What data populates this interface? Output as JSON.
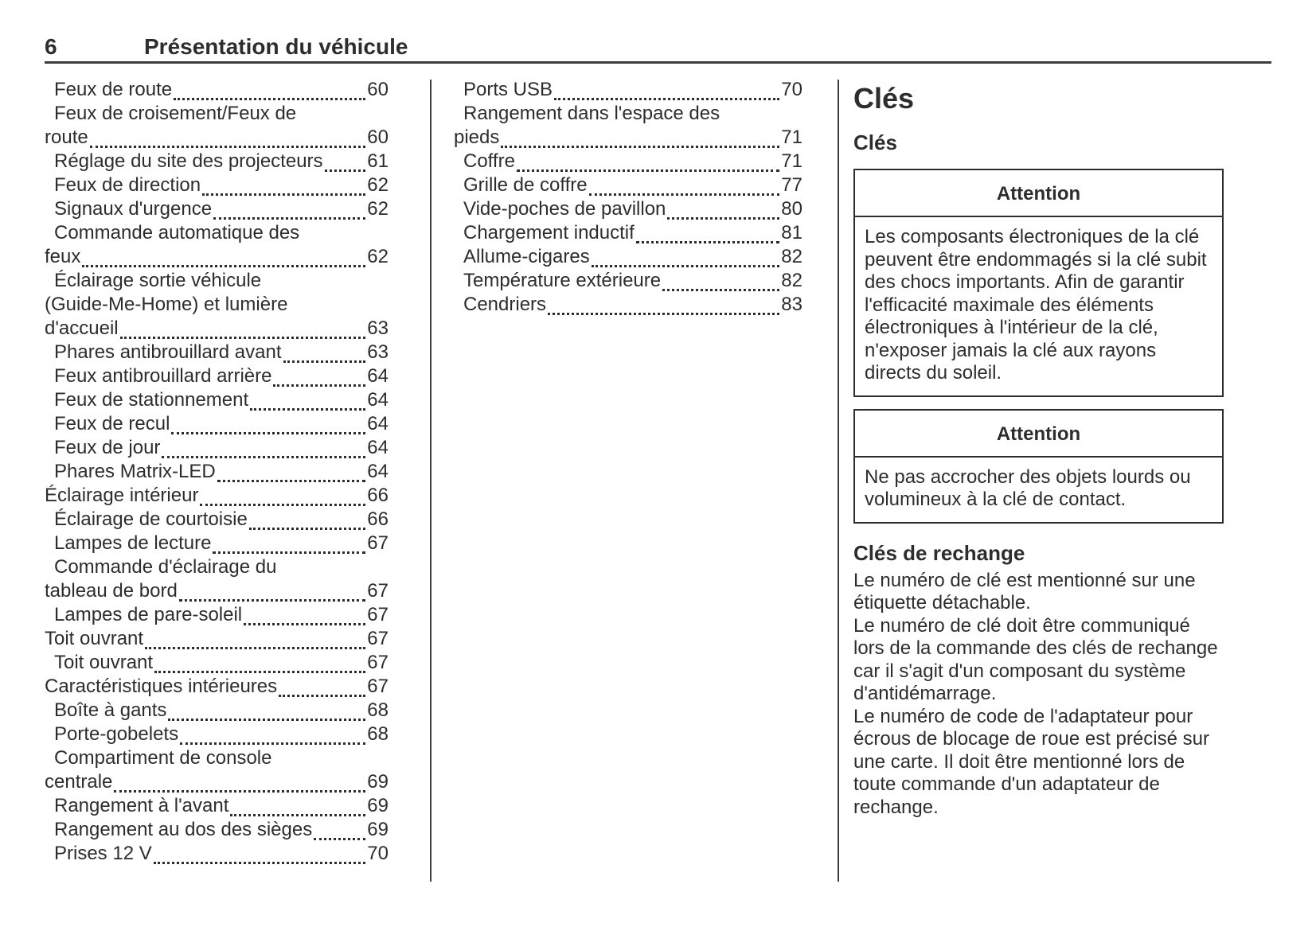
{
  "page": {
    "number": "6",
    "title": "Présentation du véhicule"
  },
  "toc": {
    "column1": [
      {
        "text": "Feux de route",
        "page": "60",
        "indent": 1
      },
      {
        "text": "Feux de croisement/Feux de",
        "indent": 1
      },
      {
        "text": "route",
        "page": "60",
        "indent": 0
      },
      {
        "text": "Réglage du site des projecteurs",
        "page": "61",
        "indent": 1
      },
      {
        "text": "Feux de direction",
        "page": "62",
        "indent": 1
      },
      {
        "text": "Signaux d'urgence",
        "page": "62",
        "indent": 1
      },
      {
        "text": "Commande automatique des",
        "indent": 1
      },
      {
        "text": "feux",
        "page": "62",
        "indent": 0
      },
      {
        "text": "Éclairage sortie véhicule",
        "indent": 1
      },
      {
        "text": "(Guide-Me-Home) et lumière",
        "indent": 0
      },
      {
        "text": "d'accueil",
        "page": "63",
        "indent": 0
      },
      {
        "text": "Phares antibrouillard avant",
        "page": "63",
        "indent": 1
      },
      {
        "text": "Feux antibrouillard arrière",
        "page": "64",
        "indent": 1
      },
      {
        "text": "Feux de stationnement",
        "page": "64",
        "indent": 1
      },
      {
        "text": "Feux de recul",
        "page": "64",
        "indent": 1
      },
      {
        "text": "Feux de jour",
        "page": "64",
        "indent": 1
      },
      {
        "text": "Phares Matrix-LED",
        "page": "64",
        "indent": 1
      },
      {
        "text": "Éclairage intérieur",
        "page": "66",
        "indent": 0
      },
      {
        "text": "Éclairage de courtoisie",
        "page": "66",
        "indent": 1
      },
      {
        "text": "Lampes de lecture",
        "page": "67",
        "indent": 1
      },
      {
        "text": "Commande d'éclairage du",
        "indent": 1
      },
      {
        "text": "tableau de bord",
        "page": "67",
        "indent": 0
      },
      {
        "text": "Lampes de pare-soleil",
        "page": "67",
        "indent": 1
      },
      {
        "text": "Toit ouvrant",
        "page": "67",
        "indent": 0
      },
      {
        "text": "Toit ouvrant",
        "page": "67",
        "indent": 1
      },
      {
        "text": "Caractéristiques intérieures",
        "page": "67",
        "indent": 0
      },
      {
        "text": "Boîte à gants",
        "page": "68",
        "indent": 1
      },
      {
        "text": "Porte-gobelets",
        "page": "68",
        "indent": 1
      },
      {
        "text": "Compartiment de console",
        "indent": 1
      },
      {
        "text": "centrale",
        "page": "69",
        "indent": 0
      },
      {
        "text": "Rangement à l'avant",
        "page": "69",
        "indent": 1
      },
      {
        "text": "Rangement au dos des sièges",
        "page": "69",
        "indent": 1
      },
      {
        "text": "Prises 12 V",
        "page": "70",
        "indent": 1
      }
    ],
    "column2": [
      {
        "text": "Ports USB",
        "page": "70",
        "indent": 1
      },
      {
        "text": "Rangement dans l'espace des",
        "indent": 1
      },
      {
        "text": "pieds",
        "page": "71",
        "indent": 0
      },
      {
        "text": "Coffre",
        "page": "71",
        "indent": 1
      },
      {
        "text": "Grille de coffre",
        "page": "77",
        "indent": 1
      },
      {
        "text": "Vide-poches de pavillon",
        "page": "80",
        "indent": 1
      },
      {
        "text": "Chargement inductif",
        "page": "81",
        "indent": 1
      },
      {
        "text": "Allume-cigares",
        "page": "82",
        "indent": 1
      },
      {
        "text": "Température extérieure",
        "page": "82",
        "indent": 1
      },
      {
        "text": "Cendriers",
        "page": "83",
        "indent": 1
      }
    ]
  },
  "article": {
    "title": "Clés",
    "section": "Clés",
    "cautions": [
      {
        "label": "Attention",
        "text": "Les composants électroniques de la clé peuvent être endommagés si la clé subit des chocs importants. Afin de garantir l'efficacité maximale des éléments électroniques à l'intérieur de la clé, n'exposer jamais la clé aux rayons directs du soleil."
      },
      {
        "label": "Attention",
        "text": "Ne pas accrocher des objets lourds ou volumineux à la clé de contact."
      }
    ],
    "subsection": "Clés de rechange",
    "paragraphs": [
      "Le numéro de clé est mentionné sur une étiquette détachable.",
      "Le numéro de clé doit être communiqué lors de la commande des clés de rechange car il s'agit d'un composant du système d'antidémarrage.",
      "Le numéro de code de l'adaptateur pour écrous de blocage de roue est précisé sur une carte. Il doit être mentionné lors de toute commande d'un adaptateur de rechange."
    ]
  }
}
